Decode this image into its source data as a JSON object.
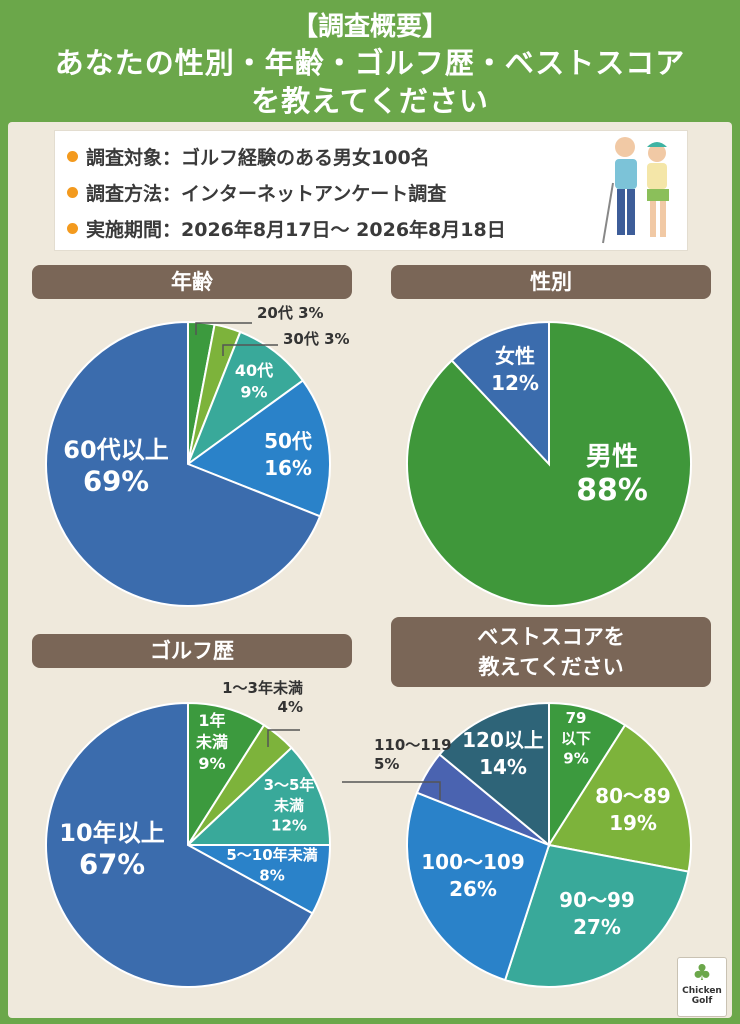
{
  "header": {
    "line1": "【調査概要】",
    "line2": "あなたの性別・年齢・ゴルフ歴・ベストスコア",
    "line3": "を教えてください"
  },
  "survey": {
    "target": "調査対象：ゴルフ経験のある男女100名",
    "method": "調査方法：インターネットアンケート調査",
    "period": "実施期間：2026年8月17日～ 2026年8月18日"
  },
  "logo": {
    "text1": "Chicken",
    "text2": "Golf"
  },
  "colors": {
    "header_bg": "#6ba74a",
    "panel_bg": "#efe9dc",
    "tag_bg": "#7a6657",
    "bullet": "#f39a1e"
  },
  "chart_data": [
    {
      "type": "pie",
      "title": "年齢",
      "slices": [
        {
          "label": "20代",
          "value": 3,
          "color": "#3c9a3e"
        },
        {
          "label": "30代",
          "value": 3,
          "color": "#7db33b"
        },
        {
          "label": "40代",
          "value": 9,
          "color": "#39a99a"
        },
        {
          "label": "50代",
          "value": 16,
          "color": "#2a82c9"
        },
        {
          "label": "60代以上",
          "value": 69,
          "color": "#3b6cad"
        }
      ]
    },
    {
      "type": "pie",
      "title": "性別",
      "slices": [
        {
          "label": "男性",
          "value": 88,
          "color": "#3f973a"
        },
        {
          "label": "女性",
          "value": 12,
          "color": "#3b6cad"
        }
      ]
    },
    {
      "type": "pie",
      "title": "ゴルフ歴",
      "slices": [
        {
          "label": "1年未満",
          "value": 9,
          "color": "#3c9a3e"
        },
        {
          "label": "1～3年未満",
          "value": 4,
          "color": "#7db33b"
        },
        {
          "label": "3～5年未満",
          "value": 12,
          "color": "#39a99a"
        },
        {
          "label": "5～10年未満",
          "value": 8,
          "color": "#2a82c9"
        },
        {
          "label": "10年以上",
          "value": 67,
          "color": "#3b6cad"
        }
      ]
    },
    {
      "type": "pie",
      "title": "ベストスコアを教えてください",
      "title_line1": "ベストスコアを",
      "title_line2": "教えてください",
      "slices": [
        {
          "label": "79以下",
          "value": 9,
          "color": "#3c9a3e"
        },
        {
          "label": "80～89",
          "value": 19,
          "color": "#7db33b"
        },
        {
          "label": "90～99",
          "value": 27,
          "color": "#39a99a"
        },
        {
          "label": "100～109",
          "value": 26,
          "color": "#2a82c9"
        },
        {
          "label": "110～119",
          "value": 5,
          "color": "#4a63b0"
        },
        {
          "label": "120以上",
          "value": 14,
          "color": "#2e6478"
        }
      ]
    }
  ]
}
